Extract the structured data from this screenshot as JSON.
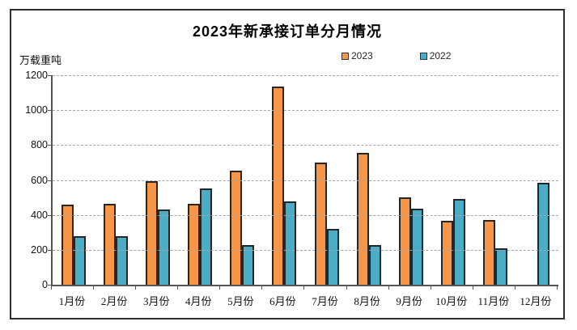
{
  "chart_data": {
    "type": "bar",
    "title": "2023年新承接订单分月情况",
    "unit_label": "万载重吨",
    "categories": [
      "1月份",
      "2月份",
      "3月份",
      "4月份",
      "5月份",
      "6月份",
      "7月份",
      "8月份",
      "9月份",
      "10月份",
      "11月份",
      "12月份"
    ],
    "series": [
      {
        "name": "2023",
        "color": "#F79646",
        "values": [
          460,
          465,
          595,
          465,
          655,
          1135,
          700,
          755,
          500,
          365,
          370,
          null
        ]
      },
      {
        "name": "2022",
        "color": "#4BACC6",
        "values": [
          280,
          280,
          430,
          550,
          225,
          475,
          320,
          225,
          435,
          490,
          210,
          585
        ]
      }
    ],
    "xlabel": "",
    "ylabel": "万载重吨",
    "ylim": [
      0,
      1200
    ],
    "yticks": [
      0,
      200,
      400,
      600,
      800,
      1000,
      1200
    ],
    "grid": "horizontal-dashed",
    "legend_position": "top-center"
  },
  "colors": {
    "series_2023": "#F79646",
    "series_2022": "#4BACC6",
    "bar_border": "#262626",
    "gridline": "#a6a6a6",
    "axis": "#555555",
    "frame_border": "#2e2e2e",
    "background": "#ffffff",
    "text": "#111111"
  }
}
